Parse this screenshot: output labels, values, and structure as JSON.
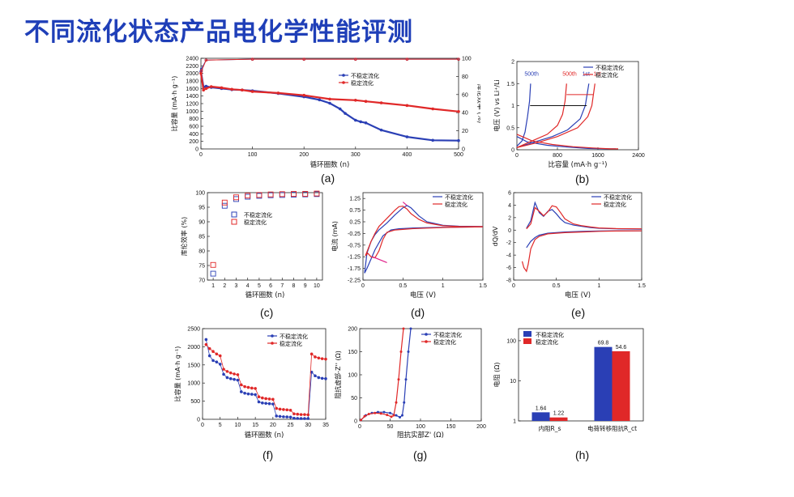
{
  "slide": {
    "title": "不同流化状态产品电化学性能评测"
  },
  "colors": {
    "blue": "#2a3fb5",
    "red": "#e02828",
    "pink": "#e0208a",
    "title": "#1f3fb8"
  },
  "chart_data": [
    {
      "id": "a",
      "panel_label": "(a)",
      "type": "scatter",
      "xlabel": "循环圈数 (n)",
      "ylabel": "比容量 (mA·h g⁻¹)",
      "y2label": "库伦效率 (%)",
      "xlim": [
        0,
        500
      ],
      "ylim": [
        0,
        2400
      ],
      "y2lim": [
        0,
        100
      ],
      "xticks": [
        0,
        100,
        200,
        300,
        400,
        500
      ],
      "yticks": [
        0,
        200,
        400,
        600,
        800,
        1000,
        1200,
        1400,
        1600,
        1800,
        2000,
        2200,
        2400
      ],
      "y2ticks": [
        0,
        20,
        40,
        60,
        80,
        100
      ],
      "legend": "top-center",
      "series": [
        {
          "name": "不稳定流化",
          "color": "blue",
          "x": [
            0,
            5,
            10,
            20,
            40,
            60,
            80,
            100,
            150,
            200,
            230,
            250,
            270,
            280,
            300,
            310,
            320,
            350,
            400,
            450,
            500
          ],
          "y": [
            2050,
            1640,
            1660,
            1630,
            1600,
            1570,
            1560,
            1540,
            1470,
            1380,
            1300,
            1210,
            1060,
            940,
            760,
            720,
            690,
            500,
            320,
            230,
            220
          ]
        },
        {
          "name": "稳定流化",
          "color": "red",
          "x": [
            0,
            5,
            10,
            20,
            40,
            60,
            80,
            100,
            150,
            200,
            250,
            300,
            320,
            350,
            400,
            450,
            500
          ],
          "y": [
            2000,
            1560,
            1600,
            1650,
            1620,
            1580,
            1560,
            1520,
            1480,
            1420,
            1320,
            1290,
            1260,
            1220,
            1150,
            1060,
            990
          ]
        },
        {
          "name": "不稳定流化 CE",
          "color": "blue",
          "x": [
            1,
            10,
            100,
            200,
            300,
            400,
            500
          ],
          "y2": [
            88,
            98,
            99,
            99,
            99,
            99,
            99
          ]
        },
        {
          "name": "稳定流化 CE",
          "color": "red",
          "x": [
            1,
            10,
            100,
            200,
            300,
            400,
            500
          ],
          "y2": [
            86,
            98,
            99,
            99,
            99,
            99,
            99
          ]
        }
      ]
    },
    {
      "id": "b",
      "panel_label": "(b)",
      "type": "line",
      "xlabel": "比容量 (mA·h g⁻¹)",
      "ylabel": "电压 (V) vs Li⁺/Li",
      "xlim": [
        0,
        2400
      ],
      "ylim": [
        0,
        2.0
      ],
      "xticks": [
        0,
        800,
        1600,
        2400
      ],
      "yticks": [
        0,
        0.5,
        1.0,
        1.5,
        2.0
      ],
      "legend": "top-right",
      "annotations": [
        {
          "text": "500th",
          "color": "blue",
          "x": 150,
          "y": 1.68
        },
        {
          "text": "500th",
          "color": "red",
          "x": 900,
          "y": 1.68
        },
        {
          "text": "1st",
          "color": "blue",
          "x": 1290,
          "y": 1.68
        },
        {
          "text": "1st",
          "color": "red",
          "x": 1510,
          "y": 1.68
        }
      ],
      "series": [
        {
          "name": "不稳定流化",
          "color": "blue",
          "x": [
            0,
            100,
            160,
            210,
            250,
            270
          ],
          "y": [
            0.08,
            0.2,
            0.4,
            0.75,
            1.1,
            1.5
          ],
          "x2": [
            0,
            300,
            700,
            1000,
            1250,
            1350,
            1420
          ],
          "y2": [
            0.05,
            0.16,
            0.3,
            0.45,
            0.7,
            1.0,
            1.5
          ],
          "x3": [
            0,
            200,
            600,
            1000,
            1400,
            1800,
            1950
          ],
          "y3": [
            0.3,
            0.18,
            0.1,
            0.06,
            0.03,
            0.02,
            0.02
          ]
        },
        {
          "name": "稳定流化",
          "color": "red",
          "x": [
            0,
            300,
            600,
            800,
            900,
            950,
            980
          ],
          "y": [
            0.05,
            0.2,
            0.35,
            0.55,
            0.8,
            1.1,
            1.5
          ],
          "x2": [
            0,
            400,
            800,
            1200,
            1400,
            1480,
            1540
          ],
          "y2": [
            0.05,
            0.16,
            0.3,
            0.5,
            0.75,
            1.0,
            1.5
          ],
          "x3": [
            0,
            300,
            700,
            1100,
            1500,
            1850,
            2000
          ],
          "y3": [
            0.35,
            0.2,
            0.12,
            0.07,
            0.04,
            0.02,
            0.02
          ]
        }
      ]
    },
    {
      "id": "c",
      "panel_label": "(c)",
      "type": "scatter",
      "xlabel": "循环圈数 (n)",
      "ylabel": "库伦效率 (%)",
      "xlim": [
        0.5,
        10.5
      ],
      "ylim": [
        70,
        100
      ],
      "xticks": [
        1,
        2,
        3,
        4,
        5,
        6,
        7,
        8,
        9,
        10
      ],
      "yticks": [
        70,
        75,
        80,
        85,
        90,
        95,
        100
      ],
      "legend": "center",
      "series": [
        {
          "name": "不稳定流化",
          "color": "blue",
          "x": [
            1,
            2,
            3,
            4,
            5,
            6,
            7,
            8,
            9,
            10
          ],
          "values": [
            72.2,
            95.5,
            97.8,
            98.6,
            98.9,
            99.1,
            99.2,
            99.3,
            99.4,
            99.5
          ]
        },
        {
          "name": "稳定流化",
          "color": "red",
          "x": [
            1,
            2,
            3,
            4,
            5,
            6,
            7,
            8,
            9,
            10
          ],
          "values": [
            75.2,
            96.6,
            98.4,
            99.0,
            99.2,
            99.4,
            99.5,
            99.6,
            99.6,
            99.7
          ]
        }
      ]
    },
    {
      "id": "d",
      "panel_label": "(d)",
      "type": "line",
      "xlabel": "电压 (V)",
      "ylabel": "电流 (mA)",
      "xlim": [
        0,
        1.5
      ],
      "ylim": [
        -2.25,
        1.5
      ],
      "xticks": [
        0,
        0.5,
        1.0,
        1.5
      ],
      "yticks": [
        -2.25,
        -1.75,
        -1.25,
        -0.75,
        -0.25,
        0.25,
        0.75,
        1.25
      ],
      "ytick_labels": [
        "-2.25",
        "-1.75",
        "-1.25",
        "-0.75",
        "-0.25",
        "0.25",
        "0.75",
        "1.25"
      ],
      "legend": "top-right",
      "series": [
        {
          "name": "不稳定流化",
          "color": "blue",
          "x": [
            0.02,
            0.05,
            0.1,
            0.15,
            0.2,
            0.3,
            0.4,
            0.5,
            0.55,
            0.6,
            0.7,
            0.8,
            1.0,
            1.2,
            1.5
          ],
          "y": [
            -1.95,
            -1.1,
            -0.6,
            -0.3,
            -0.1,
            0.2,
            0.55,
            0.85,
            0.95,
            0.85,
            0.5,
            0.25,
            0.1,
            0.06,
            0.05
          ],
          "x2": [
            1.5,
            1.2,
            1.0,
            0.8,
            0.6,
            0.45,
            0.35,
            0.25,
            0.2,
            0.15,
            0.1,
            0.05,
            0.02
          ],
          "y2": [
            0.03,
            0.02,
            0.01,
            0.0,
            -0.02,
            -0.05,
            -0.1,
            -0.35,
            -0.65,
            -0.95,
            -1.35,
            -1.75,
            -1.95
          ]
        },
        {
          "name": "稳定流化",
          "color": "red",
          "x": [
            0.03,
            0.06,
            0.1,
            0.15,
            0.2,
            0.3,
            0.4,
            0.45,
            0.5,
            0.55,
            0.6,
            0.7,
            0.8,
            1.0,
            1.2,
            1.5
          ],
          "y": [
            -1.2,
            -0.95,
            -0.6,
            -0.25,
            0.05,
            0.4,
            0.75,
            0.9,
            0.92,
            0.8,
            0.6,
            0.35,
            0.2,
            0.08,
            0.05,
            0.04
          ],
          "x2": [
            1.5,
            1.2,
            1.0,
            0.8,
            0.6,
            0.4,
            0.3,
            0.25,
            0.2,
            0.15,
            0.1,
            0.06,
            0.03
          ],
          "y2": [
            0.03,
            0.02,
            0.0,
            -0.02,
            -0.05,
            -0.1,
            -0.2,
            -0.5,
            -1.0,
            -1.3,
            -1.25,
            -1.1,
            -1.2
          ]
        }
      ]
    },
    {
      "id": "e",
      "panel_label": "(e)",
      "type": "line",
      "xlabel": "电压 (V)",
      "ylabel": "dQ/dV",
      "xlim": [
        0,
        1.5
      ],
      "ylim": [
        -8,
        6
      ],
      "xticks": [
        0,
        0.5,
        1.0,
        1.5
      ],
      "yticks": [
        -8,
        -6,
        -4,
        -2,
        0,
        2,
        4,
        6
      ],
      "legend": "top-right",
      "series": [
        {
          "name": "不稳定流化",
          "color": "blue",
          "x": [
            0.15,
            0.2,
            0.25,
            0.3,
            0.35,
            0.4,
            0.45,
            0.5,
            0.55,
            0.6,
            0.7,
            0.8,
            0.9,
            1.0,
            1.2,
            1.5
          ],
          "y": [
            0.3,
            1.5,
            4.4,
            2.8,
            2.2,
            3.0,
            3.3,
            2.6,
            1.8,
            1.2,
            0.8,
            0.6,
            0.4,
            0.3,
            0.2,
            0.15
          ],
          "x2": [
            1.5,
            1.2,
            1.0,
            0.8,
            0.6,
            0.4,
            0.3,
            0.25,
            0.2,
            0.17,
            0.15
          ],
          "y2": [
            -0.1,
            -0.1,
            -0.15,
            -0.2,
            -0.3,
            -0.5,
            -0.8,
            -1.2,
            -1.8,
            -2.4,
            -2.8
          ]
        },
        {
          "name": "稳定流化",
          "color": "red",
          "x": [
            0.15,
            0.2,
            0.25,
            0.3,
            0.35,
            0.4,
            0.45,
            0.5,
            0.55,
            0.6,
            0.7,
            0.8,
            0.9,
            1.0,
            1.2,
            1.5
          ],
          "y": [
            0.2,
            1.0,
            3.6,
            3.0,
            2.3,
            2.9,
            3.9,
            3.7,
            2.8,
            1.8,
            1.0,
            0.7,
            0.5,
            0.35,
            0.25,
            0.2
          ],
          "x2": [
            1.5,
            1.2,
            1.0,
            0.8,
            0.6,
            0.4,
            0.3,
            0.25,
            0.2,
            0.17,
            0.15,
            0.12,
            0.1
          ],
          "y2": [
            -0.1,
            -0.15,
            -0.2,
            -0.3,
            -0.4,
            -0.6,
            -1.0,
            -1.5,
            -3.0,
            -5.5,
            -6.6,
            -6.0,
            -5.0
          ]
        }
      ]
    },
    {
      "id": "f",
      "panel_label": "(f)",
      "type": "scatter",
      "xlabel": "循环圈数 (n)",
      "ylabel": "比容量 (mA·h g⁻¹)",
      "xlim": [
        0,
        35
      ],
      "ylim": [
        0,
        2500
      ],
      "xticks": [
        0,
        5,
        10,
        15,
        20,
        25,
        30,
        35
      ],
      "yticks": [
        0,
        500,
        1000,
        1500,
        2000,
        2500
      ],
      "legend": "top-right",
      "series": [
        {
          "name": "不稳定流化",
          "color": "blue",
          "x": [
            1,
            2,
            3,
            4,
            5,
            6,
            7,
            8,
            9,
            10,
            11,
            12,
            13,
            14,
            15,
            16,
            17,
            18,
            19,
            20,
            21,
            22,
            23,
            24,
            25,
            26,
            27,
            28,
            29,
            30,
            31,
            32,
            33,
            34,
            35
          ],
          "values": [
            2200,
            1750,
            1620,
            1580,
            1520,
            1240,
            1150,
            1120,
            1100,
            1080,
            760,
            720,
            700,
            690,
            680,
            480,
            450,
            440,
            430,
            420,
            90,
            80,
            70,
            65,
            60,
            30,
            25,
            20,
            20,
            20,
            1300,
            1200,
            1150,
            1130,
            1120
          ]
        },
        {
          "name": "稳定流化",
          "color": "red",
          "x": [
            1,
            2,
            3,
            4,
            5,
            6,
            7,
            8,
            9,
            10,
            11,
            12,
            13,
            14,
            15,
            16,
            17,
            18,
            19,
            20,
            21,
            22,
            23,
            24,
            25,
            26,
            27,
            28,
            29,
            30,
            31,
            32,
            33,
            34,
            35
          ],
          "values": [
            2060,
            1950,
            1870,
            1800,
            1750,
            1380,
            1320,
            1280,
            1250,
            1230,
            950,
            900,
            880,
            860,
            850,
            620,
            590,
            570,
            560,
            550,
            300,
            280,
            270,
            260,
            250,
            150,
            140,
            130,
            130,
            125,
            1800,
            1720,
            1690,
            1670,
            1660
          ]
        }
      ]
    },
    {
      "id": "g",
      "panel_label": "(g)",
      "type": "line",
      "xlabel": "阻抗实部Z' (Ω)",
      "ylabel": "阻抗虚部-Z'' (Ω)",
      "xlim": [
        0,
        200
      ],
      "ylim": [
        0,
        200
      ],
      "xticks": [
        0,
        50,
        100,
        150,
        200
      ],
      "yticks": [
        0,
        50,
        100,
        150,
        200
      ],
      "legend": "top-right",
      "series": [
        {
          "name": "不稳定流化",
          "color": "blue",
          "x": [
            2,
            10,
            20,
            30,
            40,
            50,
            60,
            66,
            70,
            73,
            76,
            80,
            84
          ],
          "y": [
            2,
            12,
            17,
            19,
            19,
            17,
            12,
            8,
            12,
            40,
            90,
            150,
            200
          ]
        },
        {
          "name": "稳定流化",
          "color": "red",
          "x": [
            2,
            8,
            15,
            25,
            35,
            45,
            52,
            56,
            60,
            64,
            68,
            72
          ],
          "y": [
            2,
            10,
            15,
            17,
            16,
            13,
            9,
            12,
            40,
            90,
            150,
            200
          ]
        }
      ]
    },
    {
      "id": "h",
      "panel_label": "(h)",
      "type": "bar",
      "xlabel": "",
      "ylabel": "电阻 (Ω)",
      "yscale": "log",
      "ylim": [
        1,
        200
      ],
      "yticks": [
        1,
        10,
        100
      ],
      "categories": [
        "内阻R_s",
        "电荷转移阻抗R_ct"
      ],
      "legend": "top-left",
      "series": [
        {
          "name": "不稳定流化",
          "color": "blue",
          "values": [
            1.64,
            69.8
          ],
          "labels": [
            "1.64",
            "69.8"
          ]
        },
        {
          "name": "稳定流化",
          "color": "red",
          "values": [
            1.22,
            54.6
          ],
          "labels": [
            "1.22",
            "54.6"
          ]
        }
      ]
    }
  ]
}
